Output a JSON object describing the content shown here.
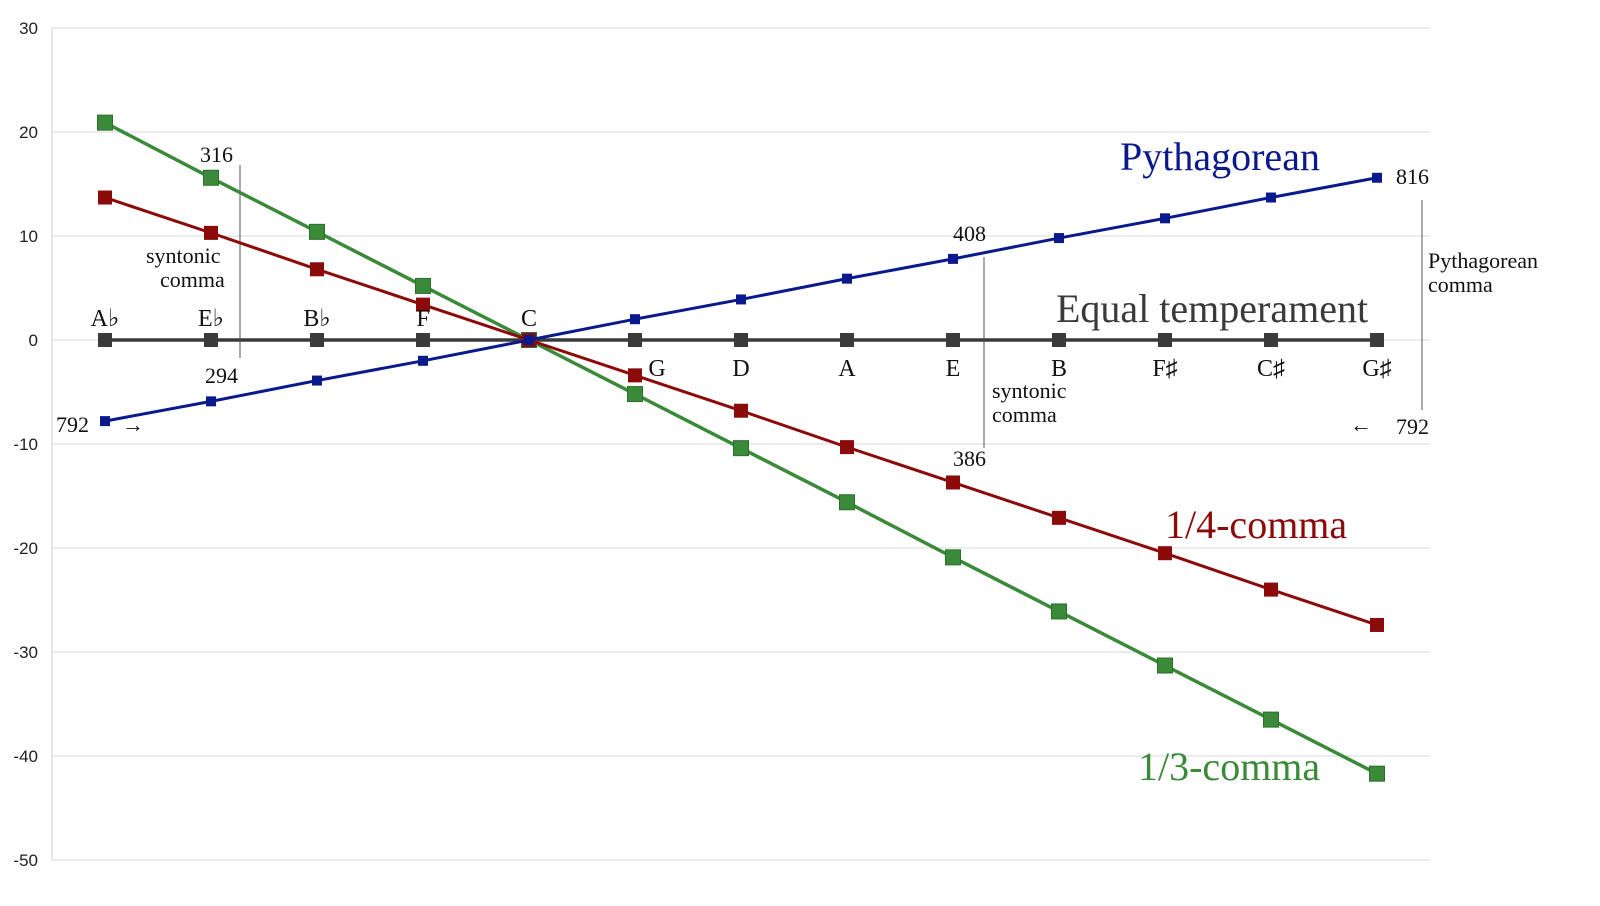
{
  "chart_data": {
    "type": "line",
    "title": "",
    "xlabel": "",
    "ylabel": "",
    "ylim": [
      -50,
      30
    ],
    "y_ticks": [
      "30",
      "20",
      "10",
      "0",
      "-10",
      "-20",
      "-30",
      "-40",
      "-50"
    ],
    "y_tick_values": [
      30,
      20,
      10,
      0,
      -10,
      -20,
      -30,
      -40,
      -50
    ],
    "grid": true,
    "categories": [
      "A♭",
      "E♭",
      "B♭",
      "F",
      "C",
      "G",
      "D",
      "A",
      "E",
      "B",
      "F♯",
      "C♯",
      "G♯"
    ],
    "series": [
      {
        "name": "Pythagorean",
        "color": "#0a1a8c",
        "values": [
          -7.8,
          -5.9,
          -3.9,
          -2.0,
          0,
          2.0,
          3.9,
          5.9,
          7.8,
          9.8,
          11.7,
          13.7,
          15.6
        ]
      },
      {
        "name": "Equal temperament",
        "color": "#3a3a3a",
        "values": [
          0,
          0,
          0,
          0,
          0,
          0,
          0,
          0,
          0,
          0,
          0,
          0,
          0
        ]
      },
      {
        "name": "1/4-comma",
        "color": "#8b0a0a",
        "values": [
          13.7,
          10.3,
          6.8,
          3.4,
          0,
          -3.4,
          -6.8,
          -10.3,
          -13.7,
          -17.1,
          -20.5,
          -24.0,
          -27.4
        ]
      },
      {
        "name": "1/3-comma",
        "color": "#3a8a3a",
        "values": [
          20.9,
          15.6,
          10.4,
          5.2,
          0,
          -5.2,
          -10.4,
          -15.6,
          -20.9,
          -26.1,
          -31.3,
          -36.5,
          -41.7
        ]
      }
    ],
    "annotations": {
      "n316": "316",
      "n294": "294",
      "n408": "408",
      "n386": "386",
      "n816": "816",
      "n792_left": "792",
      "n792_right": "792",
      "arrow_left": "→",
      "arrow_right": "←",
      "syntonic_left_1": "syntonic",
      "syntonic_left_2": "comma",
      "syntonic_right_1": "syntonic",
      "syntonic_right_2": "comma",
      "pyth_comma_1": "Pythagorean",
      "pyth_comma_2": "comma"
    }
  }
}
